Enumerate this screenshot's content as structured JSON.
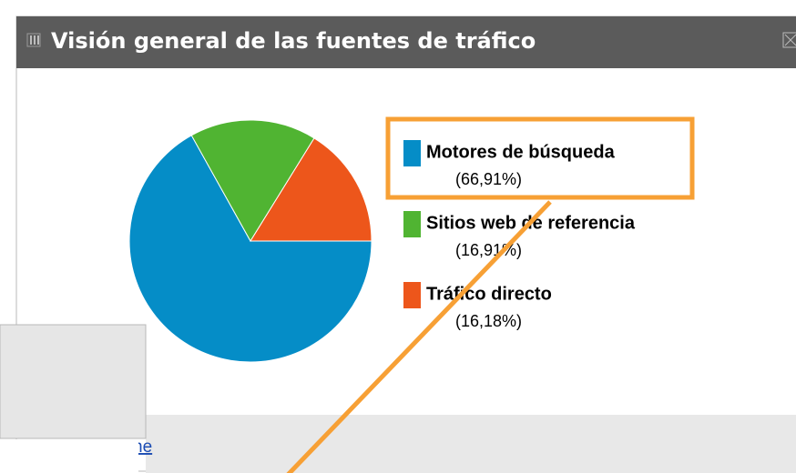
{
  "chart_data": {
    "type": "pie",
    "title": "Visión general de las fuentes de tráfico",
    "categories": [
      "Motores de búsqueda",
      "Sitios web de referencia",
      "Tráfico directo"
    ],
    "values": [
      66.91,
      16.91,
      16.18
    ],
    "value_labels": [
      "(66,91%)",
      "(16,91%)",
      "(16,18%)"
    ],
    "colors": [
      "#058dc7",
      "#50b432",
      "#ed561b"
    ]
  },
  "footer_link": "ne"
}
